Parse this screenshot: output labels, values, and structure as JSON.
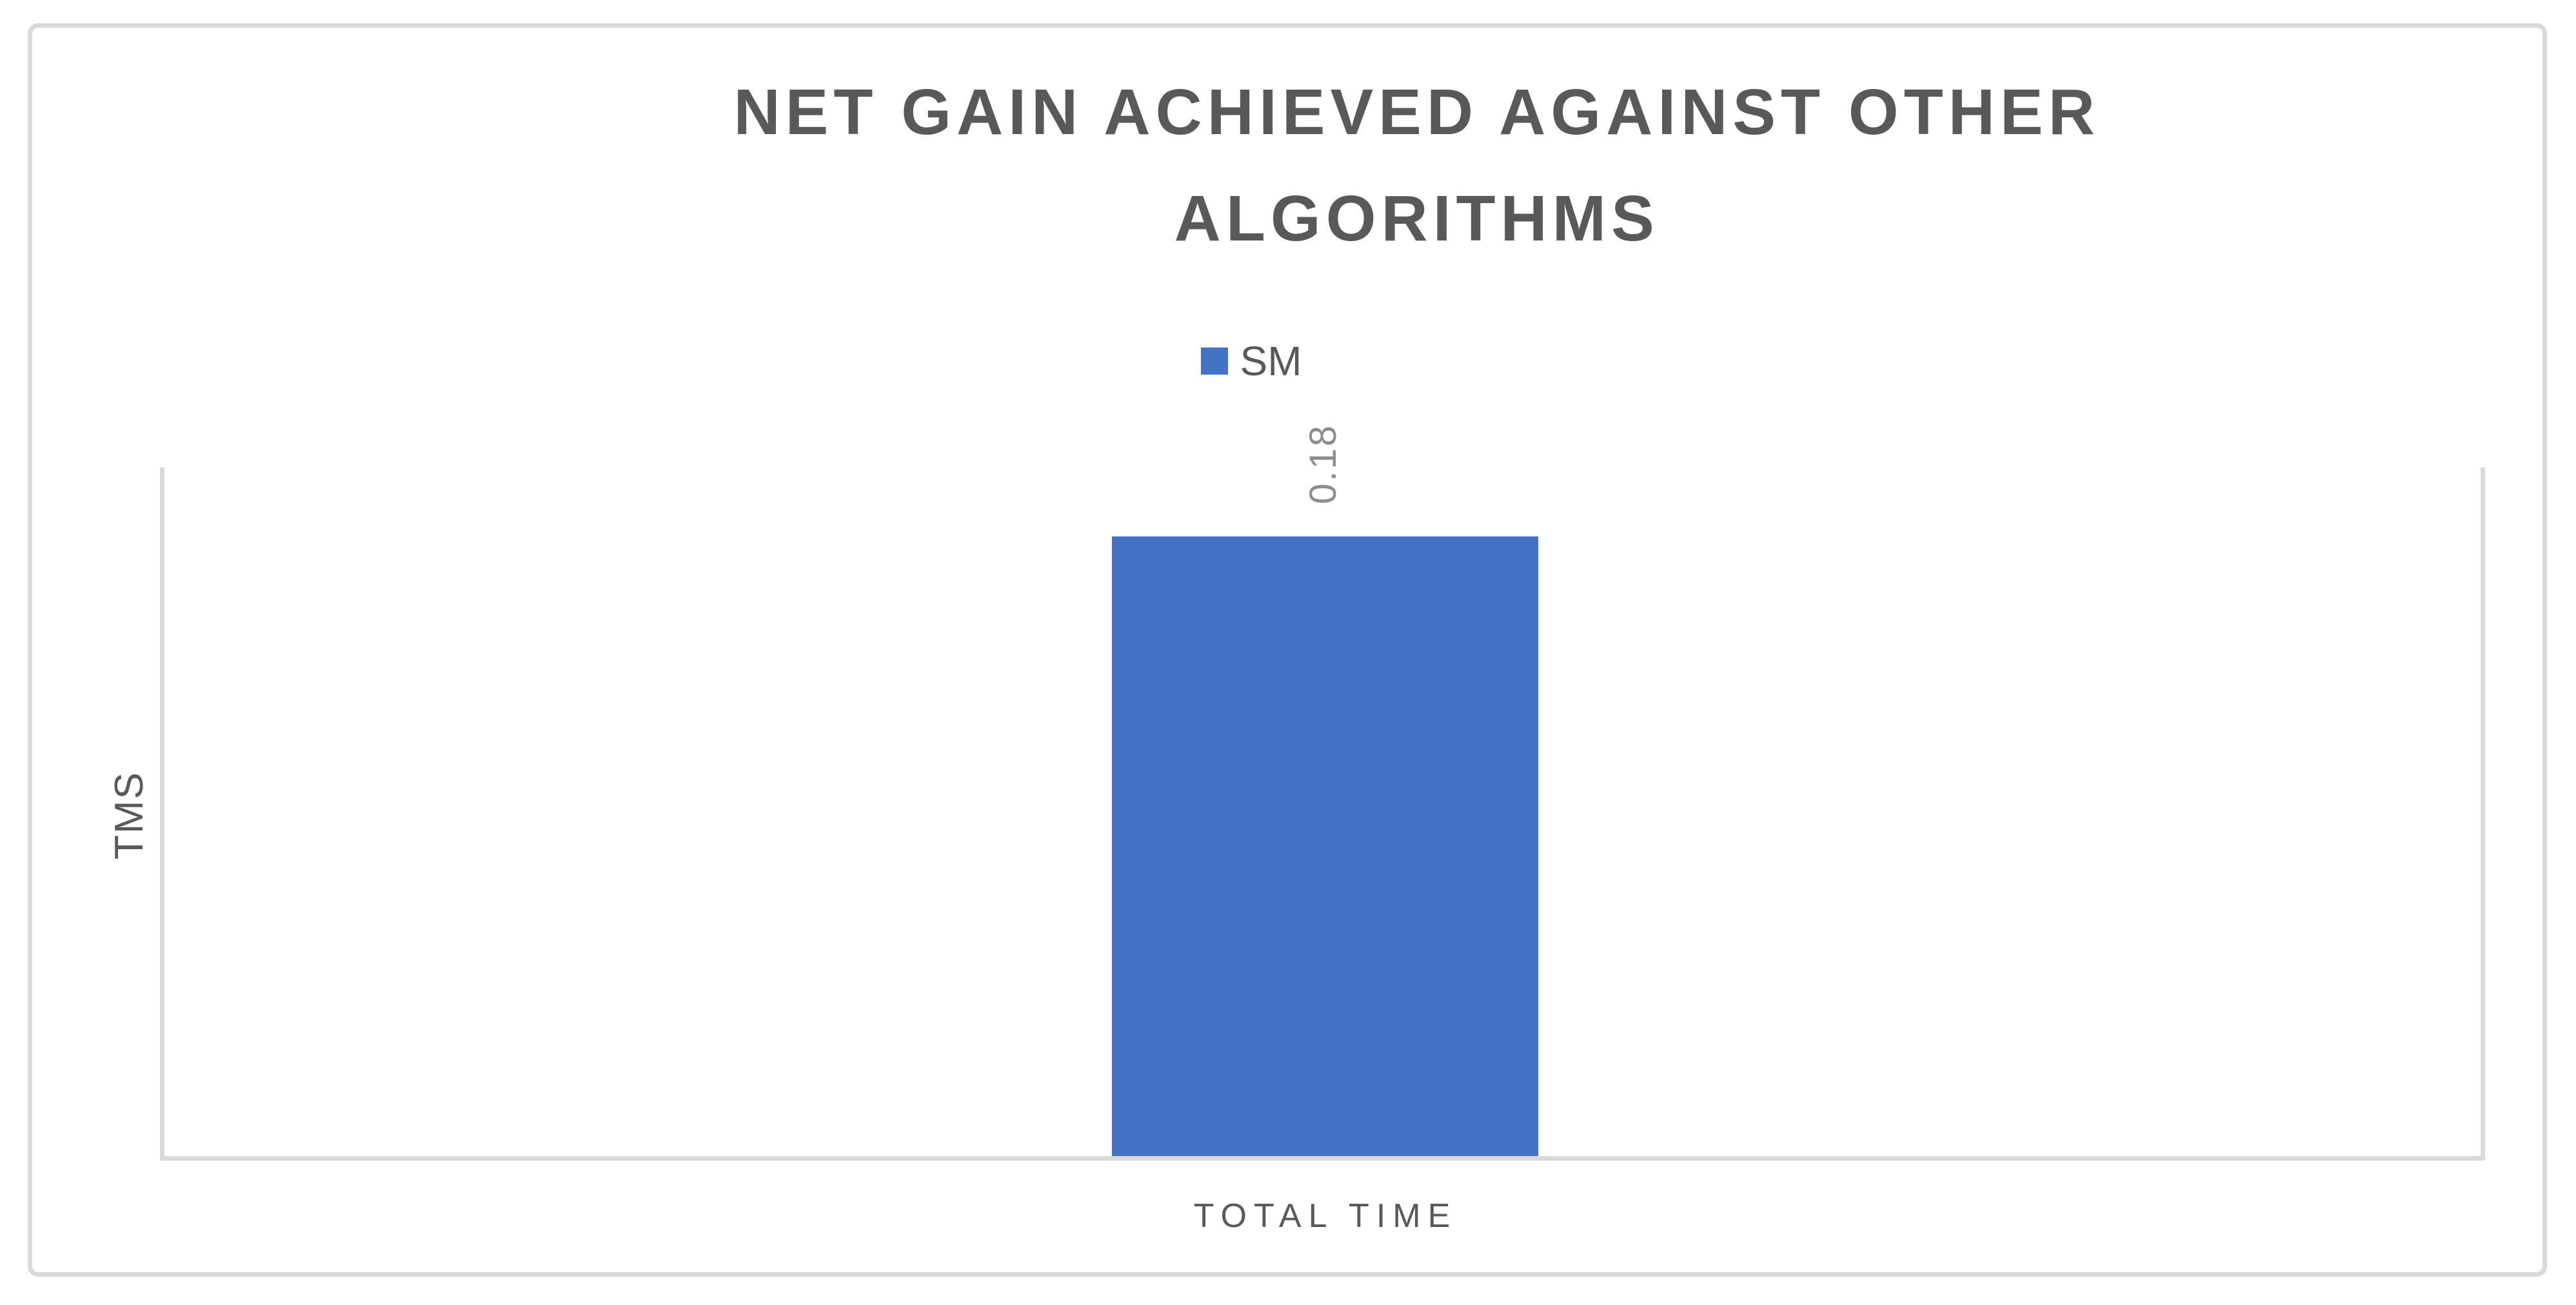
{
  "chart_data": {
    "type": "bar",
    "title": "NET GAIN ACHIEVED AGAINST OTHER ALGORITHMS",
    "title_lines": [
      "NET GAIN ACHIEVED AGAINST OTHER",
      "ALGORITHMS"
    ],
    "categories": [
      "TOTAL TIME"
    ],
    "series": [
      {
        "name": "SM",
        "values": [
          0.18
        ],
        "color": "#4472C4"
      }
    ],
    "data_labels": [
      "0.18"
    ],
    "xlabel": "TOTAL TIME",
    "ylabel": "TMS",
    "ylim": [
      0,
      0.2
    ],
    "grid": false,
    "legend_position": "top-center",
    "value_labels_rotated": true,
    "colors": {
      "bar": "#4472C4",
      "title_text": "#595959",
      "axis_text": "#595959",
      "data_label_text": "#8C8C8C",
      "axis_line": "#D9D9D9",
      "chart_border": "#D9D9D9"
    }
  }
}
